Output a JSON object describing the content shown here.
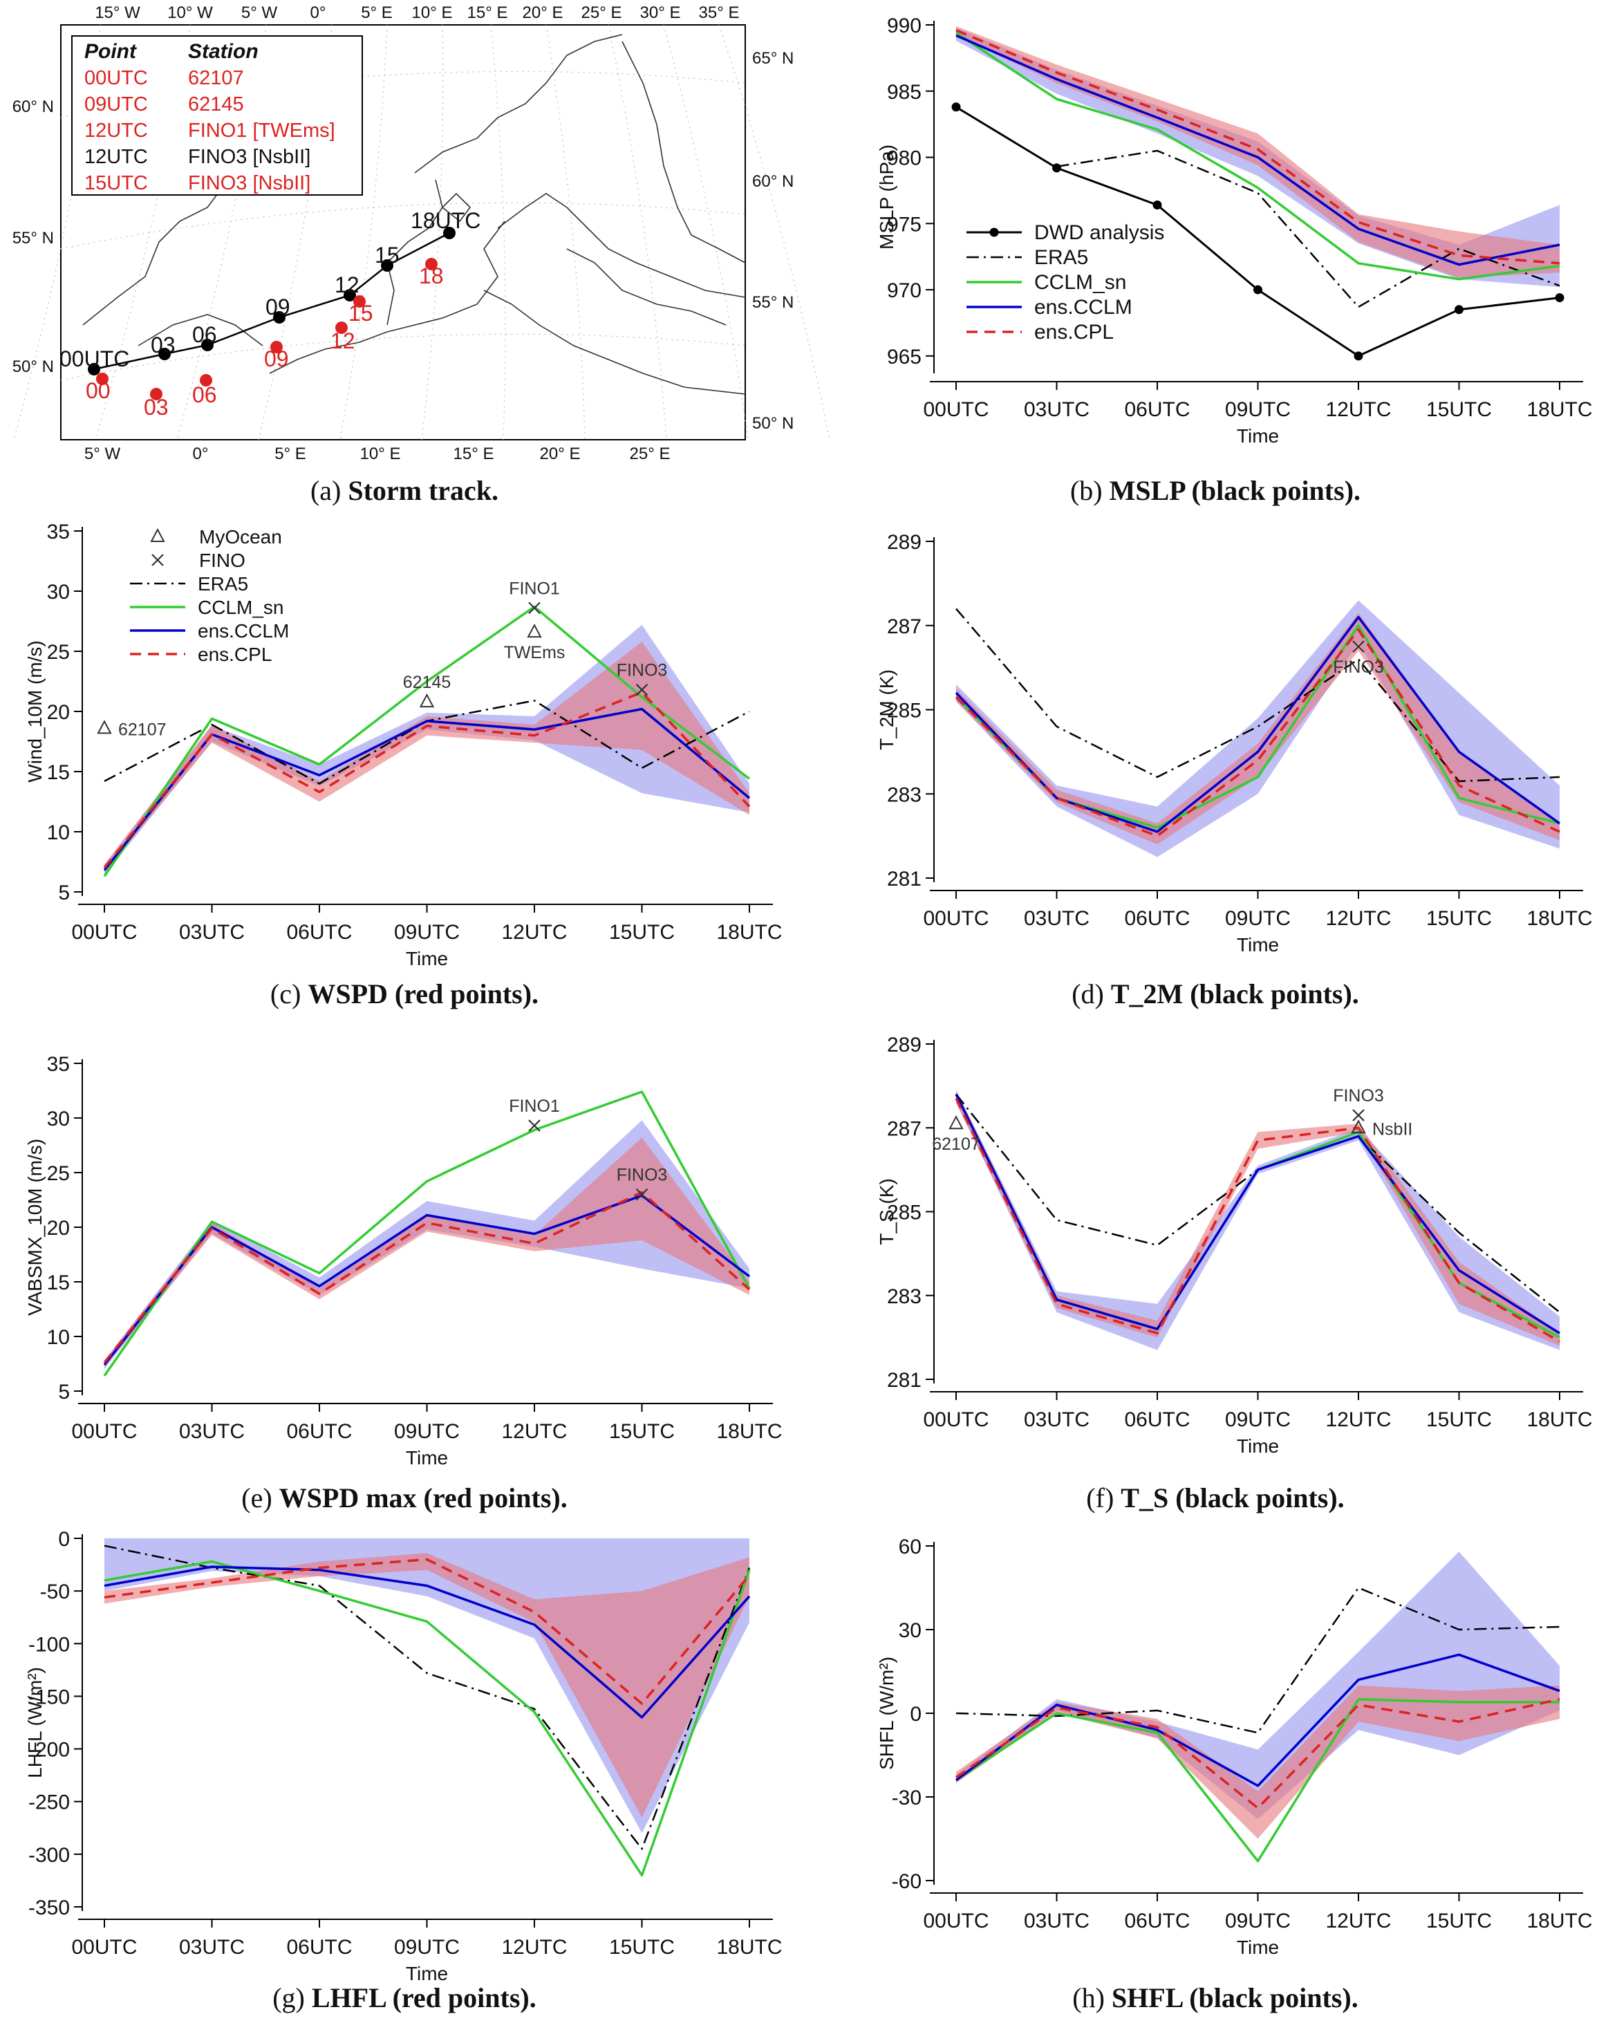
{
  "captions": [
    {
      "label": "(a)",
      "text": "Storm track."
    },
    {
      "label": "(b)",
      "text": "MSLP (black points)."
    },
    {
      "label": "(c)",
      "text": "WSPD (red points)."
    },
    {
      "label": "(d)",
      "text": "T_2M (black points)."
    },
    {
      "label": "(e)",
      "text": "WSPD max (red points)."
    },
    {
      "label": "(f)",
      "text": "T_S (black points)."
    },
    {
      "label": "(g)",
      "text": "LHFL (red points)."
    },
    {
      "label": "(h)",
      "text": "SHFL (black points)."
    }
  ],
  "colors": {
    "obs": "#000000",
    "era5": "#000000",
    "cclm_sn": "#33cc33",
    "ens_cclm": "#0000cc",
    "ens_cpl": "#dd2222",
    "band_cclm": "#8a8aee",
    "band_cpl": "#e8787c",
    "red_point": "#dd2222"
  },
  "map": {
    "legend_header": [
      "Point",
      "Station"
    ],
    "legend_rows": [
      {
        "point": "00UTC",
        "station": "62107",
        "color": "red"
      },
      {
        "point": "09UTC",
        "station": "62145",
        "color": "red"
      },
      {
        "point": "12UTC",
        "station": "FINO1 [TWEms]",
        "color": "red"
      },
      {
        "point": "12UTC",
        "station": "FINO3 [NsbII]",
        "color": "black"
      },
      {
        "point": "15UTC",
        "station": "FINO3 [NsbII]",
        "color": "red"
      }
    ],
    "top_lon_labels": [
      "15° W",
      "10° W",
      "5° W",
      "0°",
      "5° E",
      "10° E",
      "15° E",
      "20° E",
      "25° E",
      "30° E",
      "35° E"
    ],
    "bottom_lon_labels": [
      "5° W",
      "0°",
      "5° E",
      "10° E",
      "15° E",
      "20° E",
      "25° E"
    ],
    "left_lat_labels": [
      "60° N",
      "55° N",
      "50° N"
    ],
    "right_lat_labels": [
      "65° N",
      "60° N",
      "55° N",
      "50° N"
    ],
    "track_labels": [
      "00UTC",
      "03",
      "06",
      "09",
      "12",
      "15",
      "18UTC"
    ],
    "red_labels": [
      "00",
      "03",
      "06",
      "09",
      "12",
      "15",
      "18"
    ]
  },
  "chart_data": [
    {
      "id": "mslp",
      "type": "line",
      "xlabel": "Time",
      "ylabel": "MSLP (hPa)",
      "categories": [
        "00UTC",
        "03UTC",
        "06UTC",
        "09UTC",
        "12UTC",
        "15UTC",
        "18UTC"
      ],
      "ylim": [
        964,
        990
      ],
      "yticks": [
        965,
        970,
        975,
        980,
        985,
        990
      ],
      "legend": [
        "DWD analysis",
        "ERA5",
        "CCLM_sn",
        "ens.CCLM",
        "ens.CPL"
      ],
      "series": [
        {
          "name": "DWD analysis",
          "style": "obs",
          "values": [
            983.8,
            979.2,
            976.4,
            970.0,
            965.0,
            968.5,
            969.4
          ]
        },
        {
          "name": "ERA5",
          "style": "era5",
          "values": [
            null,
            979.3,
            980.5,
            977.3,
            968.7,
            973.1,
            970.3
          ]
        },
        {
          "name": "CCLM_sn",
          "style": "cclm_sn",
          "values": [
            989.4,
            984.4,
            982.1,
            977.7,
            972.0,
            970.8,
            971.8
          ]
        },
        {
          "name": "ens.CCLM",
          "style": "ens_cclm",
          "values": [
            989.2,
            985.9,
            983.0,
            980.0,
            974.6,
            971.9,
            973.4
          ]
        },
        {
          "name": "ens.CPL",
          "style": "ens_cpl",
          "values": [
            989.6,
            986.4,
            983.6,
            980.6,
            975.1,
            972.6,
            972.0
          ]
        }
      ],
      "bands": [
        {
          "name": "ens.CCLM spread",
          "style": "band_cclm",
          "lower": [
            988.8,
            984.8,
            981.8,
            978.6,
            973.5,
            970.8,
            970.2
          ],
          "upper": [
            989.8,
            986.6,
            983.9,
            981.2,
            975.6,
            973.4,
            976.4
          ]
        },
        {
          "name": "ens.CPL spread",
          "style": "band_cpl",
          "lower": [
            989.2,
            985.6,
            982.7,
            979.4,
            973.6,
            970.9,
            971.3
          ],
          "upper": [
            989.9,
            987.0,
            984.4,
            981.8,
            975.7,
            974.4,
            973.4
          ]
        }
      ]
    },
    {
      "id": "wspd",
      "type": "line",
      "xlabel": "Time",
      "ylabel": "Wind_10M (m/s)",
      "categories": [
        "00UTC",
        "03UTC",
        "06UTC",
        "09UTC",
        "12UTC",
        "15UTC",
        "18UTC"
      ],
      "ylim": [
        5,
        35
      ],
      "yticks": [
        5,
        10,
        15,
        20,
        25,
        30,
        35
      ],
      "legend": [
        "MyOcean",
        "FINO",
        "ERA5",
        "CCLM_sn",
        "ens.CCLM",
        "ens.CPL"
      ],
      "series": [
        {
          "name": "ERA5",
          "style": "era5",
          "values": [
            14.2,
            18.9,
            14.0,
            19.2,
            20.9,
            15.3,
            20.0
          ]
        },
        {
          "name": "CCLM_sn",
          "style": "cclm_sn",
          "values": [
            6.3,
            19.4,
            15.6,
            22.5,
            28.7,
            21.2,
            14.4
          ]
        },
        {
          "name": "ens.CCLM",
          "style": "ens_cclm",
          "values": [
            6.8,
            18.1,
            14.7,
            19.2,
            18.5,
            20.2,
            12.8
          ]
        },
        {
          "name": "ens.CPL",
          "style": "ens_cpl",
          "values": [
            7.0,
            18.1,
            13.3,
            18.8,
            18.0,
            21.6,
            12.1
          ]
        }
      ],
      "bands": [
        {
          "name": "ens.CCLM spread",
          "style": "band_cclm",
          "lower": [
            6.4,
            17.5,
            13.8,
            18.5,
            17.6,
            13.2,
            11.6
          ],
          "upper": [
            7.2,
            18.8,
            15.6,
            19.9,
            19.6,
            27.2,
            14.0
          ]
        },
        {
          "name": "ens.CPL spread",
          "style": "band_cpl",
          "lower": [
            6.6,
            17.4,
            12.5,
            18.0,
            17.4,
            16.8,
            11.4
          ],
          "upper": [
            7.3,
            18.9,
            14.2,
            19.6,
            18.9,
            25.8,
            13.2
          ]
        }
      ],
      "markers": [
        {
          "symbol": "triangle",
          "x": 0,
          "y": 18.6,
          "label": "62107",
          "pos": "right"
        },
        {
          "symbol": "triangle",
          "x": 3,
          "y": 20.8,
          "label": "62145",
          "pos": "top"
        },
        {
          "symbol": "cross",
          "x": 4,
          "y": 28.6,
          "label": "FINO1",
          "pos": "top"
        },
        {
          "symbol": "triangle",
          "x": 4,
          "y": 26.6,
          "label": "TWEms",
          "pos": "bottom"
        },
        {
          "symbol": "cross",
          "x": 5,
          "y": 21.8,
          "label": "FINO3",
          "pos": "top"
        }
      ]
    },
    {
      "id": "t2m",
      "type": "line",
      "xlabel": "Time",
      "ylabel": "T_2M (K)",
      "categories": [
        "00UTC",
        "03UTC",
        "06UTC",
        "09UTC",
        "12UTC",
        "15UTC",
        "18UTC"
      ],
      "ylim": [
        281,
        289
      ],
      "yticks": [
        281,
        283,
        285,
        287,
        289
      ],
      "series": [
        {
          "name": "ERA5",
          "style": "era5",
          "values": [
            287.4,
            284.6,
            283.4,
            284.6,
            286.2,
            283.3,
            283.4
          ]
        },
        {
          "name": "CCLM_sn",
          "style": "cclm_sn",
          "values": [
            285.3,
            282.9,
            282.2,
            283.4,
            287.0,
            282.9,
            282.3
          ]
        },
        {
          "name": "ens.CCLM",
          "style": "ens_cclm",
          "values": [
            285.4,
            282.9,
            282.1,
            284.0,
            287.2,
            284.0,
            282.3
          ]
        },
        {
          "name": "ens.CPL",
          "style": "ens_cpl",
          "values": [
            285.3,
            282.9,
            282.0,
            283.8,
            286.9,
            283.2,
            282.1
          ]
        }
      ],
      "bands": [
        {
          "name": "ens.CCLM spread",
          "style": "band_cclm",
          "lower": [
            285.2,
            282.7,
            281.5,
            283.0,
            286.6,
            282.5,
            281.7
          ],
          "upper": [
            285.6,
            283.2,
            282.7,
            284.8,
            287.6,
            285.4,
            283.2
          ]
        },
        {
          "name": "ens.CPL spread",
          "style": "band_cpl",
          "lower": [
            285.2,
            282.8,
            281.8,
            283.4,
            286.4,
            282.8,
            281.9
          ],
          "upper": [
            285.5,
            283.1,
            282.3,
            284.2,
            287.3,
            284.0,
            282.3
          ]
        }
      ],
      "markers": [
        {
          "symbol": "cross",
          "x": 4,
          "y": 286.5,
          "label": "FINO3",
          "pos": "bottom"
        }
      ]
    },
    {
      "id": "wspdmax",
      "type": "line",
      "xlabel": "Time",
      "ylabel": "VABSMX_10M (m/s)",
      "categories": [
        "00UTC",
        "03UTC",
        "06UTC",
        "09UTC",
        "12UTC",
        "15UTC",
        "18UTC"
      ],
      "ylim": [
        5,
        35
      ],
      "yticks": [
        5,
        10,
        15,
        20,
        25,
        30,
        35
      ],
      "series": [
        {
          "name": "CCLM_sn",
          "style": "cclm_sn",
          "values": [
            6.4,
            20.5,
            15.8,
            24.2,
            28.9,
            32.4,
            14.4
          ]
        },
        {
          "name": "ens.CCLM",
          "style": "ens_cclm",
          "values": [
            7.4,
            20.0,
            14.6,
            21.1,
            19.4,
            22.9,
            15.5
          ]
        },
        {
          "name": "ens.CPL",
          "style": "ens_cpl",
          "values": [
            7.6,
            19.9,
            13.9,
            20.4,
            18.5,
            23.2,
            14.3
          ]
        }
      ],
      "bands": [
        {
          "name": "ens.CCLM spread",
          "style": "band_cclm",
          "lower": [
            7.0,
            19.4,
            13.8,
            19.8,
            18.2,
            16.2,
            14.4
          ],
          "upper": [
            7.8,
            20.6,
            15.4,
            22.4,
            20.6,
            29.8,
            16.2
          ]
        },
        {
          "name": "ens.CPL spread",
          "style": "band_cpl",
          "lower": [
            7.2,
            19.3,
            13.4,
            19.6,
            17.8,
            18.8,
            13.8
          ],
          "upper": [
            7.8,
            20.4,
            14.4,
            21.0,
            19.3,
            28.2,
            15.0
          ]
        }
      ],
      "markers": [
        {
          "symbol": "cross",
          "x": 4,
          "y": 29.3,
          "label": "FINO1",
          "pos": "top"
        },
        {
          "symbol": "cross",
          "x": 5,
          "y": 23.0,
          "label": "FINO3",
          "pos": "top"
        }
      ]
    },
    {
      "id": "ts",
      "type": "line",
      "xlabel": "Time",
      "ylabel": "T_S (K)",
      "categories": [
        "00UTC",
        "03UTC",
        "06UTC",
        "09UTC",
        "12UTC",
        "15UTC",
        "18UTC"
      ],
      "ylim": [
        281,
        289
      ],
      "yticks": [
        281,
        283,
        285,
        287,
        289
      ],
      "series": [
        {
          "name": "ERA5",
          "style": "era5",
          "values": [
            287.8,
            284.8,
            284.2,
            286.0,
            286.8,
            284.5,
            282.6
          ]
        },
        {
          "name": "CCLM_sn",
          "style": "cclm_sn",
          "values": [
            287.8,
            282.9,
            282.2,
            286.0,
            286.9,
            283.3,
            282.0
          ]
        },
        {
          "name": "ens.CCLM",
          "style": "ens_cclm",
          "values": [
            287.8,
            282.9,
            282.2,
            286.0,
            286.8,
            283.6,
            282.1
          ]
        },
        {
          "name": "ens.CPL",
          "style": "ens_cpl",
          "values": [
            287.7,
            282.8,
            282.1,
            286.7,
            287.0,
            283.3,
            281.9
          ]
        }
      ],
      "bands": [
        {
          "name": "ens.CCLM spread",
          "style": "band_cclm",
          "lower": [
            287.6,
            282.6,
            281.7,
            285.9,
            286.7,
            282.6,
            281.7
          ],
          "upper": [
            287.9,
            283.1,
            282.8,
            286.1,
            287.0,
            284.4,
            282.5
          ]
        },
        {
          "name": "ens.CPL spread",
          "style": "band_cpl",
          "lower": [
            287.6,
            282.7,
            282.0,
            286.5,
            286.9,
            282.8,
            281.8
          ],
          "upper": [
            287.9,
            283.0,
            282.4,
            286.9,
            287.1,
            283.8,
            282.1
          ]
        }
      ],
      "markers": [
        {
          "symbol": "triangle",
          "x": 0,
          "y": 287.1,
          "label": "62107",
          "pos": "bottom"
        },
        {
          "symbol": "cross",
          "x": 4,
          "y": 287.3,
          "label": "FINO3",
          "pos": "top"
        },
        {
          "symbol": "triangle",
          "x": 4,
          "y": 287.0,
          "label": "NsbII",
          "pos": "right"
        }
      ]
    },
    {
      "id": "lhfl",
      "type": "line",
      "xlabel": "Time",
      "ylabel": "LHFL (W/m²)",
      "categories": [
        "00UTC",
        "03UTC",
        "06UTC",
        "09UTC",
        "12UTC",
        "15UTC",
        "18UTC"
      ],
      "ylim": [
        -350,
        0
      ],
      "yticks": [
        -350,
        -300,
        -250,
        -200,
        -150,
        -100,
        -50,
        0
      ],
      "series": [
        {
          "name": "ERA5",
          "style": "era5",
          "values": [
            -7,
            -28,
            -45,
            -128,
            -162,
            -295,
            -28
          ]
        },
        {
          "name": "CCLM_sn",
          "style": "cclm_sn",
          "values": [
            -40,
            -22,
            -50,
            -79,
            -165,
            -320,
            -30
          ]
        },
        {
          "name": "ens.CCLM",
          "style": "ens_cclm",
          "values": [
            -45,
            -27,
            -30,
            -45,
            -82,
            -170,
            -55
          ]
        },
        {
          "name": "ens.CPL",
          "style": "ens_cpl",
          "values": [
            -56,
            -42,
            -28,
            -20,
            -70,
            -157,
            -35
          ]
        }
      ],
      "bands": [
        {
          "name": "ens.CCLM spread",
          "style": "band_cclm",
          "lower": [
            -50,
            -31,
            -36,
            -55,
            -95,
            -280,
            -80
          ]
        },
        {
          "name": "ens.CPL spread",
          "style": "band_cpl",
          "lower": [
            -62,
            -46,
            -36,
            -30,
            -80,
            -265,
            -55
          ],
          "upper": [
            -50,
            -38,
            -22,
            -14,
            -58,
            -50,
            -18
          ]
        }
      ]
    },
    {
      "id": "shfl",
      "type": "line",
      "xlabel": "Time",
      "ylabel": "SHFL (W/m²)",
      "categories": [
        "00UTC",
        "03UTC",
        "06UTC",
        "09UTC",
        "12UTC",
        "15UTC",
        "18UTC"
      ],
      "ylim": [
        -60,
        60
      ],
      "yticks": [
        -60,
        -30,
        0,
        30,
        60
      ],
      "series": [
        {
          "name": "ERA5",
          "style": "era5",
          "values": [
            0,
            -1,
            1,
            -7,
            45,
            30,
            31
          ]
        },
        {
          "name": "CCLM_sn",
          "style": "cclm_sn",
          "values": [
            -24,
            0,
            -7,
            -53,
            5,
            4,
            4
          ]
        },
        {
          "name": "ens.CCLM",
          "style": "ens_cclm",
          "values": [
            -24,
            3,
            -6,
            -26,
            12,
            21,
            8
          ]
        },
        {
          "name": "ens.CPL",
          "style": "ens_cpl",
          "values": [
            -23,
            2,
            -5,
            -34,
            3,
            -3,
            5
          ]
        }
      ],
      "bands": [
        {
          "name": "ens.CCLM spread",
          "style": "band_cclm",
          "lower": [
            -25,
            1,
            -9,
            -38,
            -6,
            -15,
            1
          ],
          "upper": [
            -22,
            5,
            -3,
            -13,
            22,
            58,
            17
          ]
        },
        {
          "name": "ens.CPL spread",
          "style": "band_cpl",
          "lower": [
            -25,
            0,
            -9,
            -45,
            -3,
            -10,
            -2
          ],
          "upper": [
            -21,
            4,
            -2,
            -28,
            10,
            8,
            10
          ]
        }
      ]
    }
  ]
}
